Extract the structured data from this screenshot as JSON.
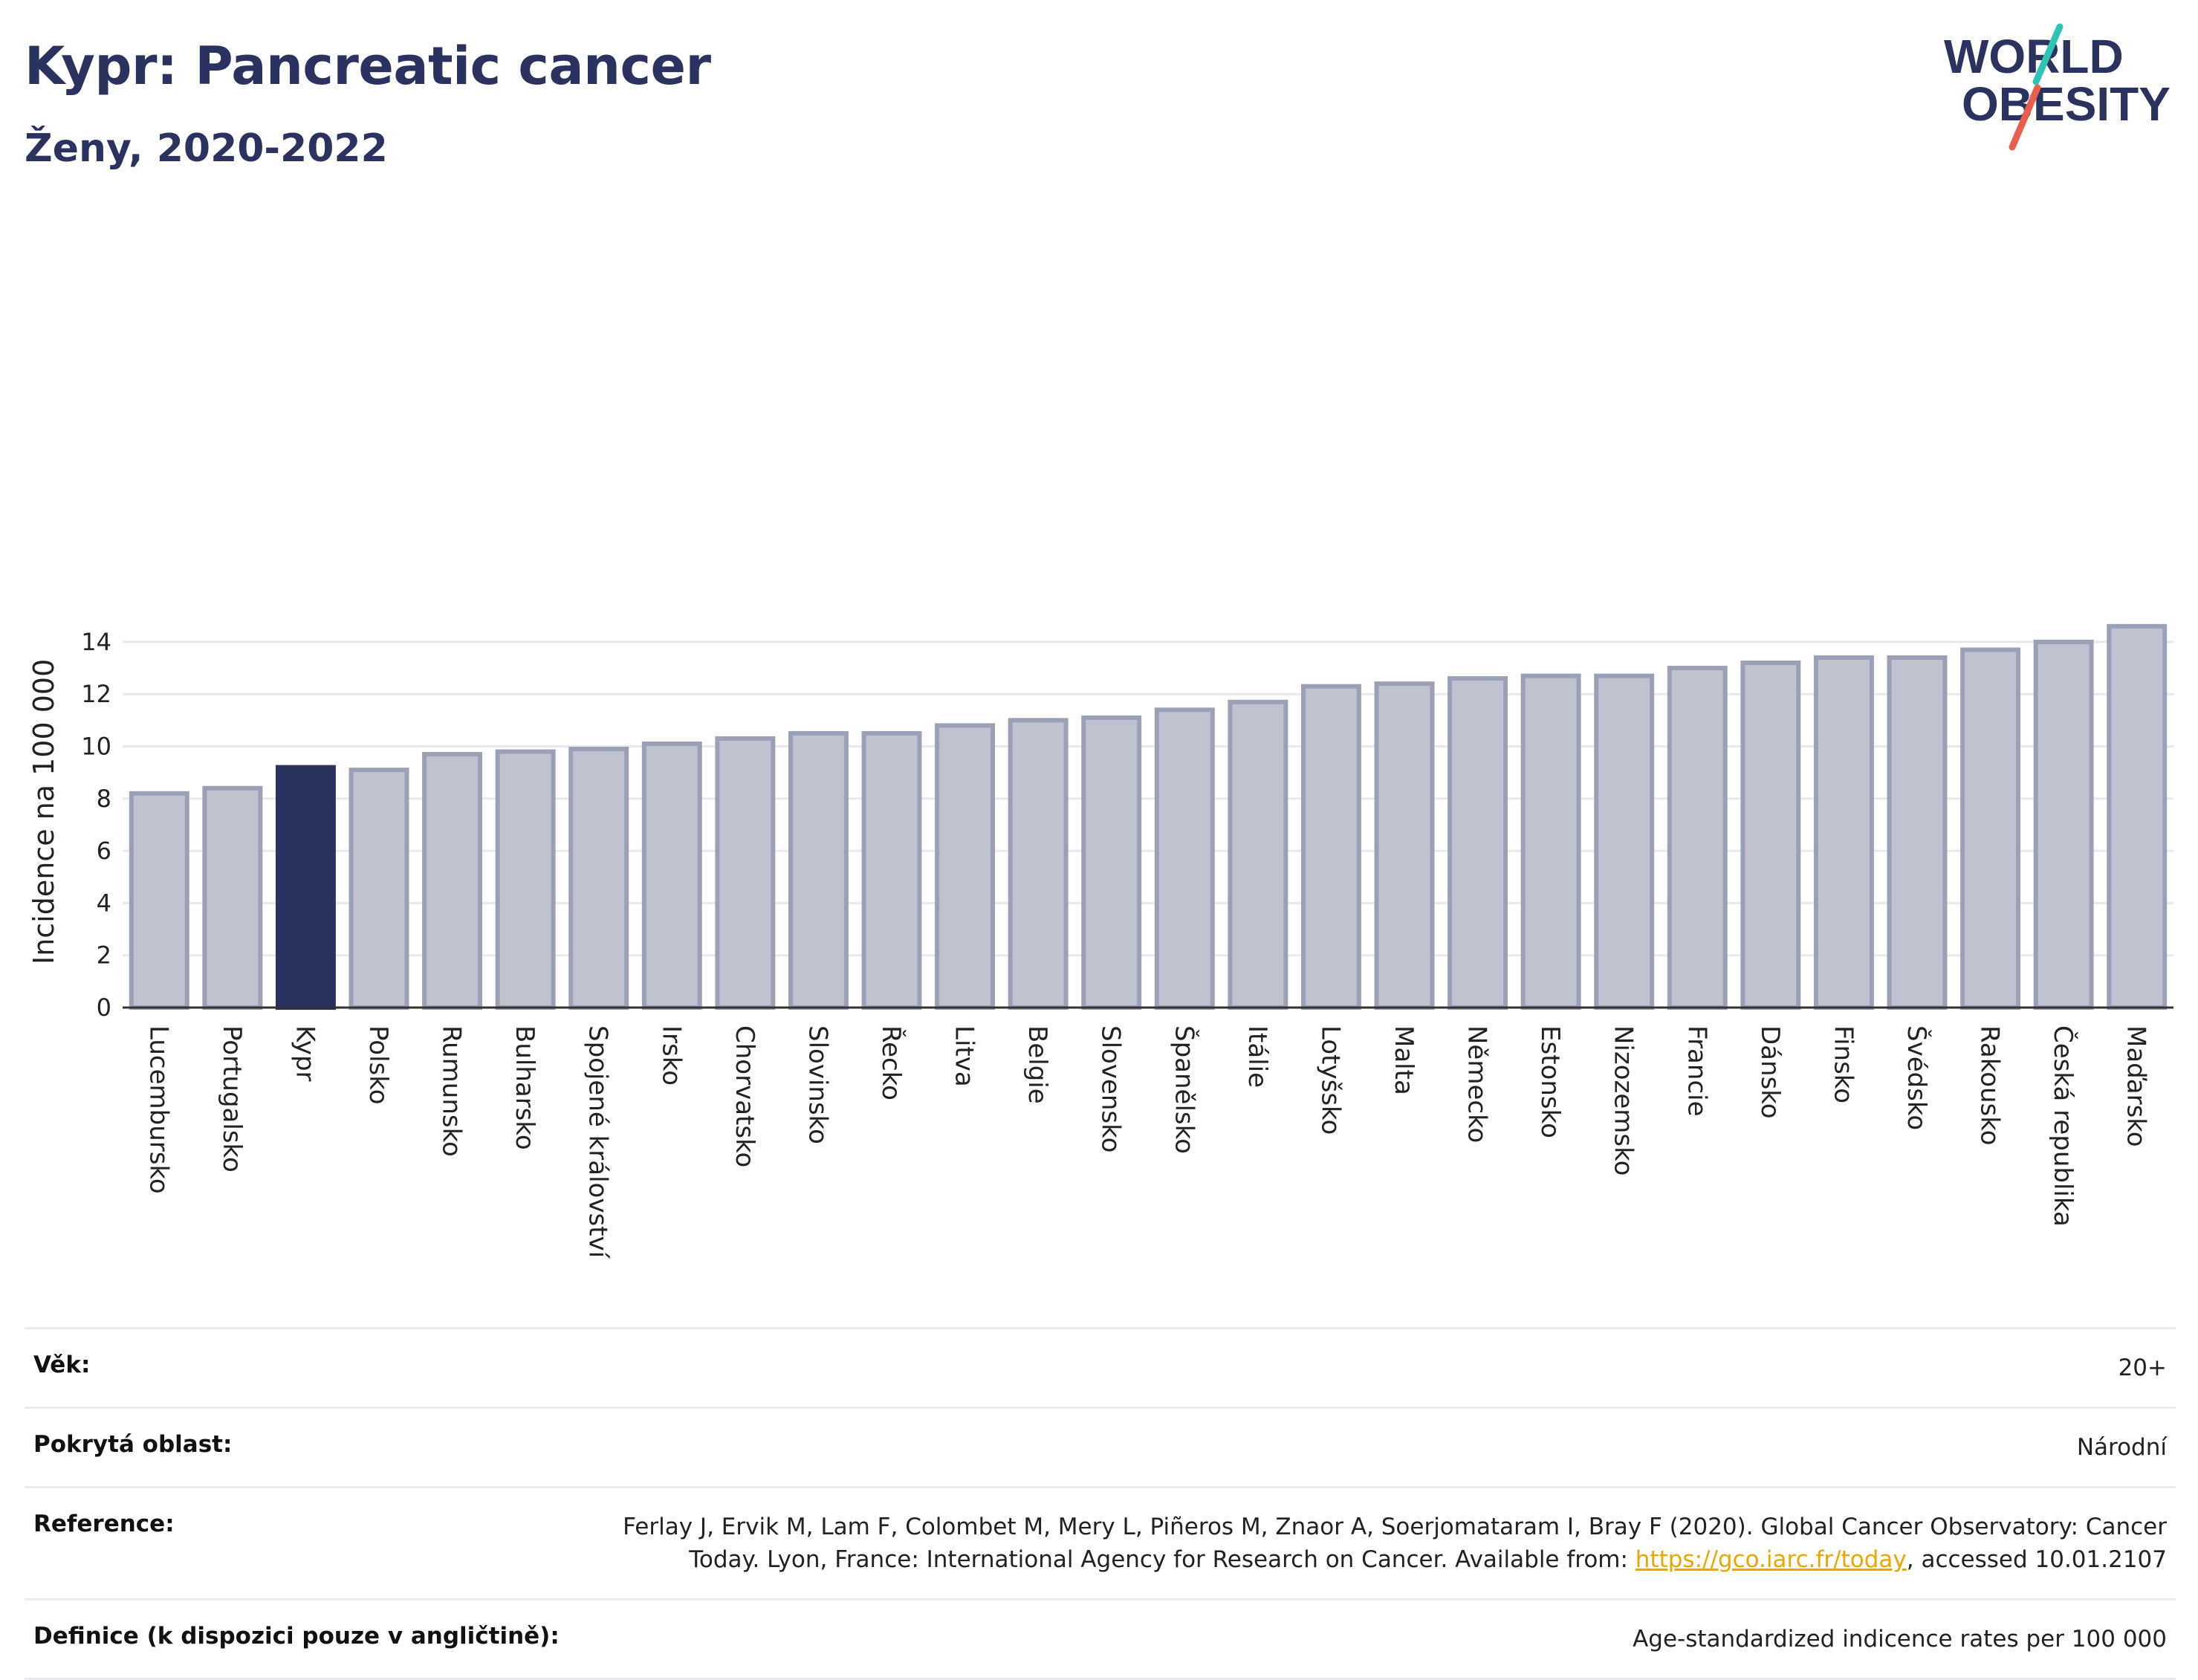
{
  "header": {
    "title": "Kypr: Pancreatic cancer",
    "subtitle": "Ženy, 2020-2022"
  },
  "logo": {
    "line1": "WORLD",
    "line2": "OBESITY",
    "accent_colors": [
      "#2ec4b6",
      "#e8604c"
    ],
    "brand_color": "#2a3360"
  },
  "colors": {
    "bar_default_fill": "#c0c3cf",
    "bar_default_stroke": "#9aa0b6",
    "bar_highlight": "#2a3360",
    "grid": "#e8e8ee",
    "axis": "#333333"
  },
  "chart_data": {
    "type": "bar",
    "title": "Kypr: Pancreatic cancer",
    "subtitle": "Ženy, 2020-2022",
    "xlabel": "",
    "ylabel": "Incidence na 100 000",
    "ylim": [
      0,
      15
    ],
    "yticks": [
      0,
      2,
      4,
      6,
      8,
      10,
      12,
      14
    ],
    "grid": true,
    "highlight": "Kypr",
    "categories": [
      "Lucembursko",
      "Portugalsko",
      "Kypr",
      "Polsko",
      "Rumunsko",
      "Bulharsko",
      "Spojené království",
      "Irsko",
      "Chorvatsko",
      "Slovinsko",
      "Řecko",
      "Litva",
      "Belgie",
      "Slovensko",
      "Španělsko",
      "Itálie",
      "Lotyšsko",
      "Malta",
      "Německo",
      "Estonsko",
      "Nizozemsko",
      "Francie",
      "Dánsko",
      "Finsko",
      "Švédsko",
      "Rakousko",
      "Česká republika",
      "Maďarsko"
    ],
    "values": [
      8.2,
      8.4,
      9.2,
      9.1,
      9.7,
      9.8,
      9.9,
      10.1,
      10.3,
      10.5,
      10.5,
      10.8,
      11.0,
      11.1,
      11.4,
      11.7,
      12.3,
      12.4,
      12.6,
      12.7,
      12.7,
      13.0,
      13.2,
      13.4,
      13.4,
      13.7,
      14.0,
      14.6
    ]
  },
  "info": {
    "age_label": "Věk:",
    "age_value": "20+",
    "area_label": "Pokrytá oblast:",
    "area_value": "Národní",
    "reference_label": "Reference:",
    "reference_text": "Ferlay J, Ervik M, Lam F, Colombet M, Mery L, Piñeros M, Znaor A, Soerjomataram I, Bray F (2020). Global Cancer Observatory: Cancer Today. Lyon, France: International Agency for Research on Cancer. Available from:",
    "reference_link": "https://gco.iarc.fr/today",
    "reference_suffix": ", accessed 10.01.2107",
    "definition_label": "Definice (k dispozici pouze v angličtině):",
    "definition_value": "Age-standardized indicence rates per 100 000"
  }
}
